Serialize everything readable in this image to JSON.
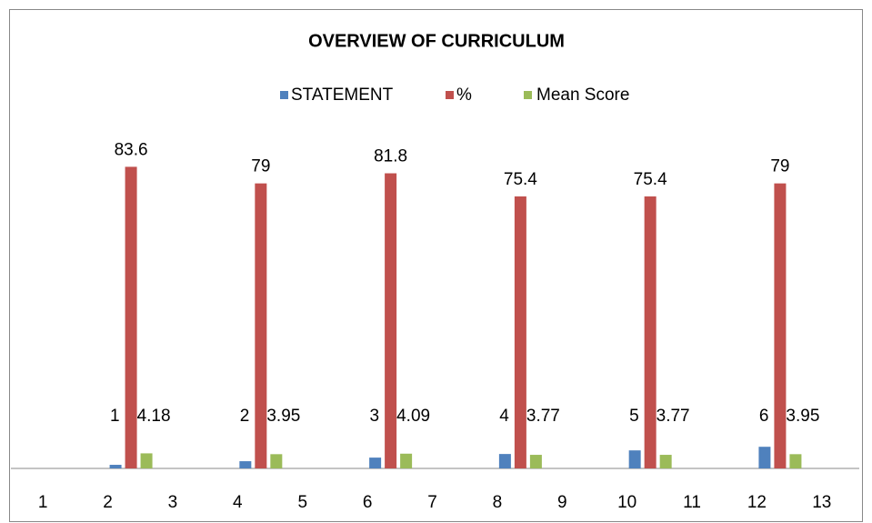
{
  "chart_data": {
    "type": "bar",
    "title": "OVERVIEW OF CURRICULUM",
    "categories": [
      "1",
      "2",
      "3",
      "4",
      "5",
      "6",
      "7",
      "8",
      "9",
      "10",
      "11",
      "12",
      "13"
    ],
    "series": [
      {
        "name": "STATEMENT",
        "color": "#4f81bd",
        "values": [
          null,
          1,
          null,
          2,
          null,
          3,
          null,
          4,
          null,
          5,
          null,
          6,
          null
        ]
      },
      {
        "name": "%",
        "color": "#c0504d",
        "values": [
          null,
          83.6,
          null,
          79,
          null,
          81.8,
          null,
          75.4,
          null,
          75.4,
          null,
          79,
          null
        ]
      },
      {
        "name": "Mean Score",
        "color": "#9bbb59",
        "values": [
          null,
          4.18,
          null,
          3.95,
          null,
          4.09,
          null,
          3.77,
          null,
          3.77,
          null,
          3.95,
          null
        ]
      }
    ],
    "ylim": [
      0,
      90
    ],
    "legend": "top"
  }
}
